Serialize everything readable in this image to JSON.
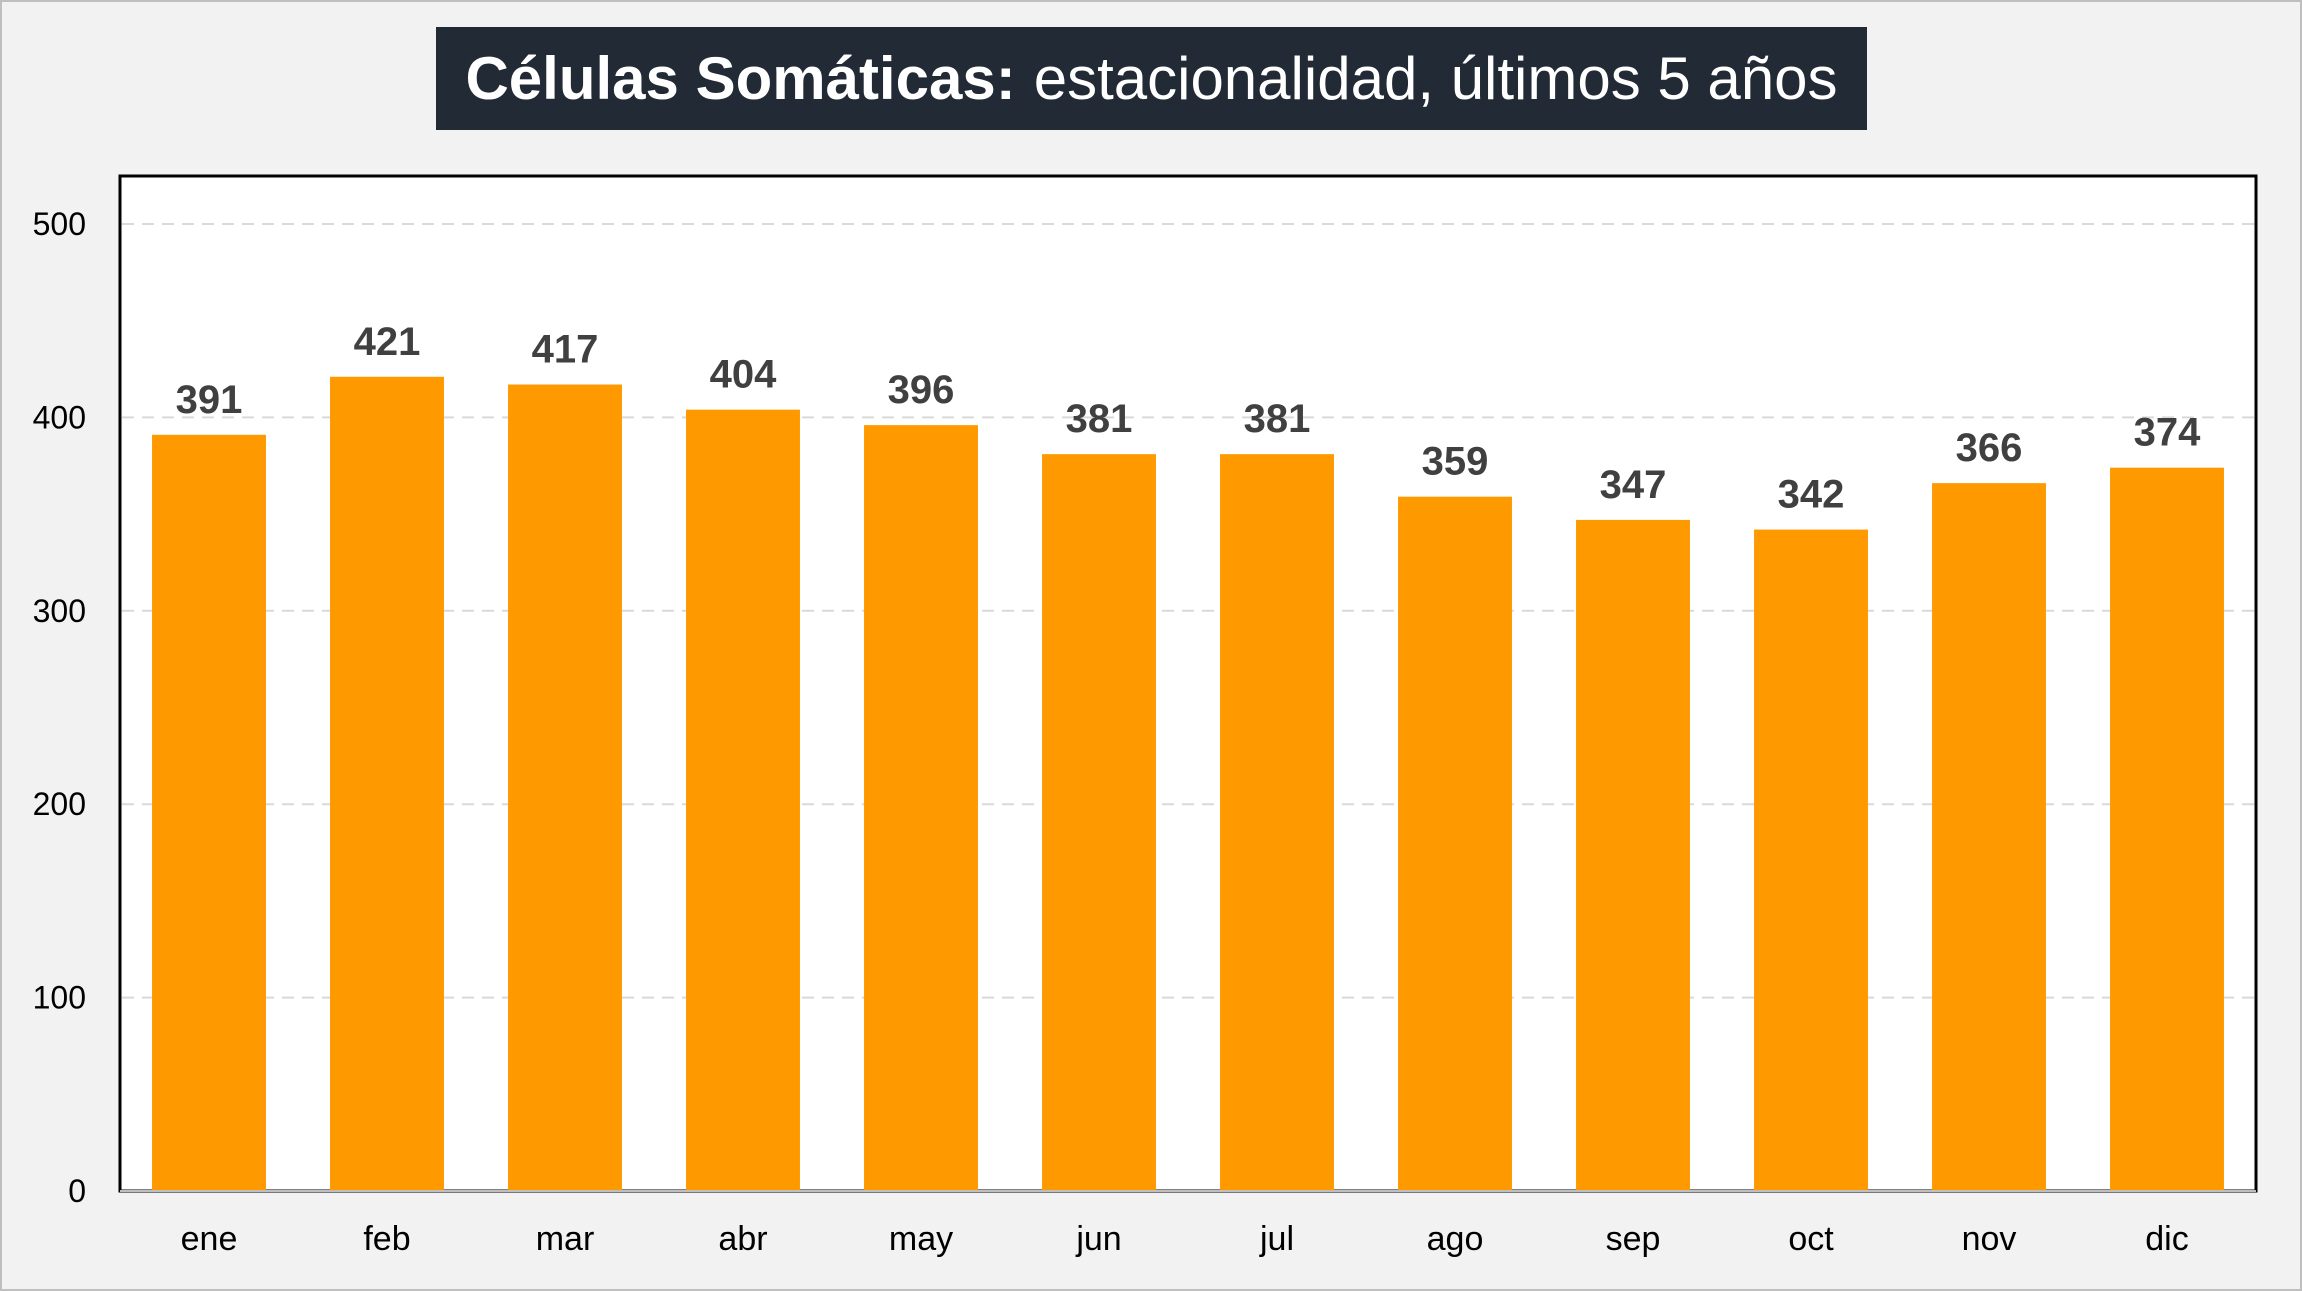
{
  "chart_data": {
    "type": "bar",
    "title_bold": "Células Somáticas:",
    "title_rest": "estacionalidad, últimos 5 años",
    "categories": [
      "ene",
      "feb",
      "mar",
      "abr",
      "may",
      "jun",
      "jul",
      "ago",
      "sep",
      "oct",
      "nov",
      "dic"
    ],
    "values": [
      391,
      421,
      417,
      404,
      396,
      381,
      381,
      359,
      347,
      342,
      366,
      374
    ],
    "ylim": [
      0,
      500
    ],
    "yticks": [
      0,
      100,
      200,
      300,
      400,
      500
    ],
    "grid": true,
    "bar_color": "#ff9900",
    "label_color": "#404040",
    "grid_color": "#d9d9d9"
  }
}
